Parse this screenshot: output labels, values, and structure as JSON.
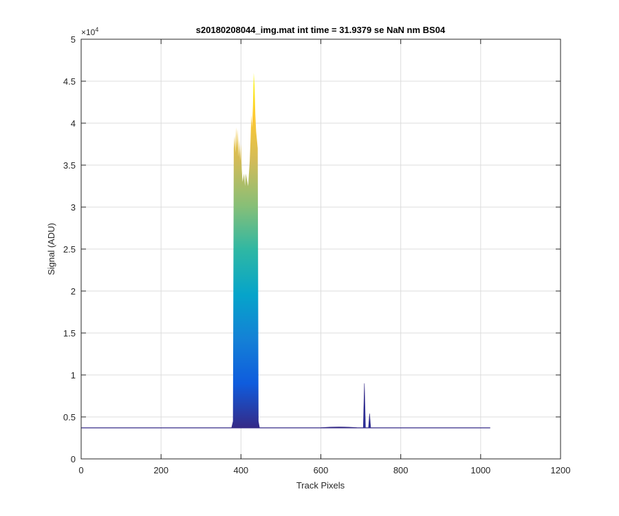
{
  "chart_data": {
    "type": "area",
    "title": "s20180208044_img.mat int time = 31.9379 se  NaN nm BS04",
    "xlabel": "Track Pixels",
    "ylabel": "Signal (ADU)",
    "y_exponent_label": "×10",
    "y_exponent": "4",
    "xlim": [
      0,
      1200
    ],
    "ylim": [
      0,
      50000
    ],
    "xticks": [
      0,
      200,
      400,
      600,
      800,
      1000,
      1200
    ],
    "xtick_labels": [
      "0",
      "200",
      "400",
      "600",
      "800",
      "1000",
      "1200"
    ],
    "yticks": [
      0,
      5000,
      10000,
      15000,
      20000,
      25000,
      30000,
      35000,
      40000,
      45000,
      50000
    ],
    "ytick_labels": [
      "0",
      "0.5",
      "1",
      "1.5",
      "2",
      "2.5",
      "3",
      "3.5",
      "4",
      "4.5",
      "5"
    ],
    "grid": true,
    "colormap": [
      "#352a87",
      "#0f5cdd",
      "#1481d6",
      "#06a4ca",
      "#2eb7a4",
      "#87bf77",
      "#d1bb59",
      "#fec832",
      "#f9fb0e"
    ],
    "baseline": 3700,
    "x_end": 1024,
    "main_band": {
      "x": [
        382,
        384,
        386,
        388,
        390,
        392,
        394,
        396,
        398,
        400,
        402,
        404,
        406,
        408,
        410,
        412,
        414,
        416,
        418,
        420,
        422,
        424,
        426,
        428,
        430,
        432,
        434,
        436,
        438,
        440,
        442
      ],
      "y": [
        37000,
        38500,
        36500,
        39500,
        37000,
        39300,
        36000,
        38000,
        35500,
        37500,
        34500,
        33000,
        33500,
        34000,
        32500,
        34000,
        33500,
        33000,
        32500,
        34000,
        35500,
        38000,
        41000,
        39500,
        42000,
        46000,
        44500,
        41000,
        39000,
        38000,
        37000
      ]
    },
    "spikes": [
      {
        "x": 709,
        "y": 9000
      },
      {
        "x": 722,
        "y": 5400
      }
    ]
  }
}
